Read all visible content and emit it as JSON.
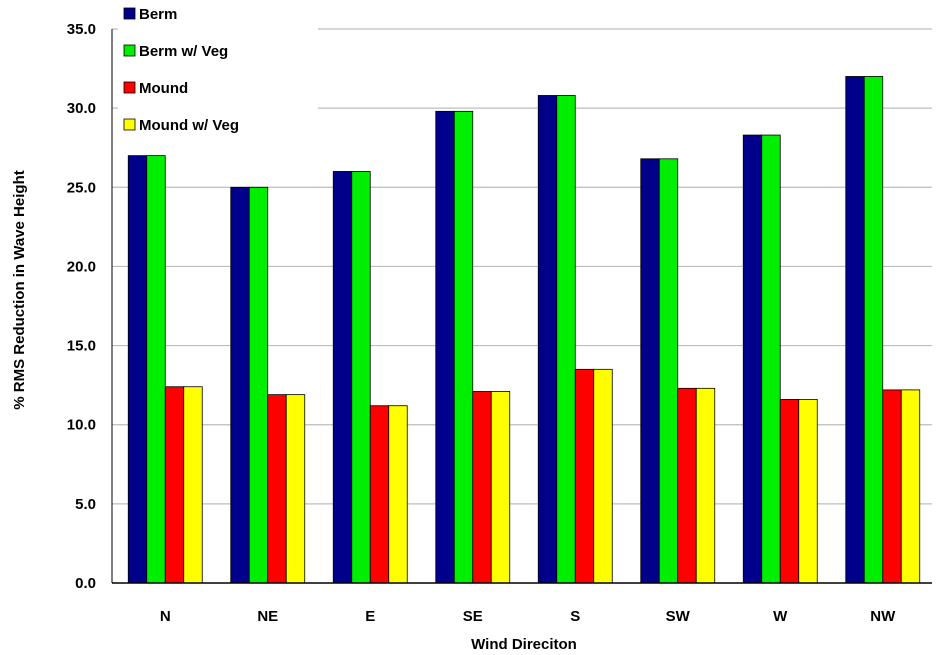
{
  "chart_data": {
    "type": "bar",
    "title": "",
    "xlabel": "Wind Direciton",
    "ylabel": "% RMS Reduction in Wave Height",
    "categories": [
      "N",
      "NE",
      "E",
      "SE",
      "S",
      "SW",
      "W",
      "NW"
    ],
    "series": [
      {
        "name": "Berm",
        "color": "#00008b",
        "values": [
          27.0,
          25.0,
          26.0,
          29.8,
          30.8,
          26.8,
          28.3,
          32.0
        ]
      },
      {
        "name": "Berm w/ Veg",
        "color": "#00ee00",
        "values": [
          27.0,
          25.0,
          26.0,
          29.8,
          30.8,
          26.8,
          28.3,
          32.0
        ]
      },
      {
        "name": "Mound",
        "color": "#ff0000",
        "values": [
          12.4,
          11.9,
          11.2,
          12.1,
          13.5,
          12.3,
          11.6,
          12.2
        ]
      },
      {
        "name": "Mound w/ Veg",
        "color": "#ffff00",
        "values": [
          12.4,
          11.9,
          11.2,
          12.1,
          13.5,
          12.3,
          11.6,
          12.2
        ]
      }
    ],
    "ylim": [
      0,
      35
    ],
    "yticks": [
      "0.0",
      "5.0",
      "10.0",
      "15.0",
      "20.0",
      "25.0",
      "30.0",
      "35.0"
    ],
    "grid": true,
    "legend_position": "top-left"
  }
}
